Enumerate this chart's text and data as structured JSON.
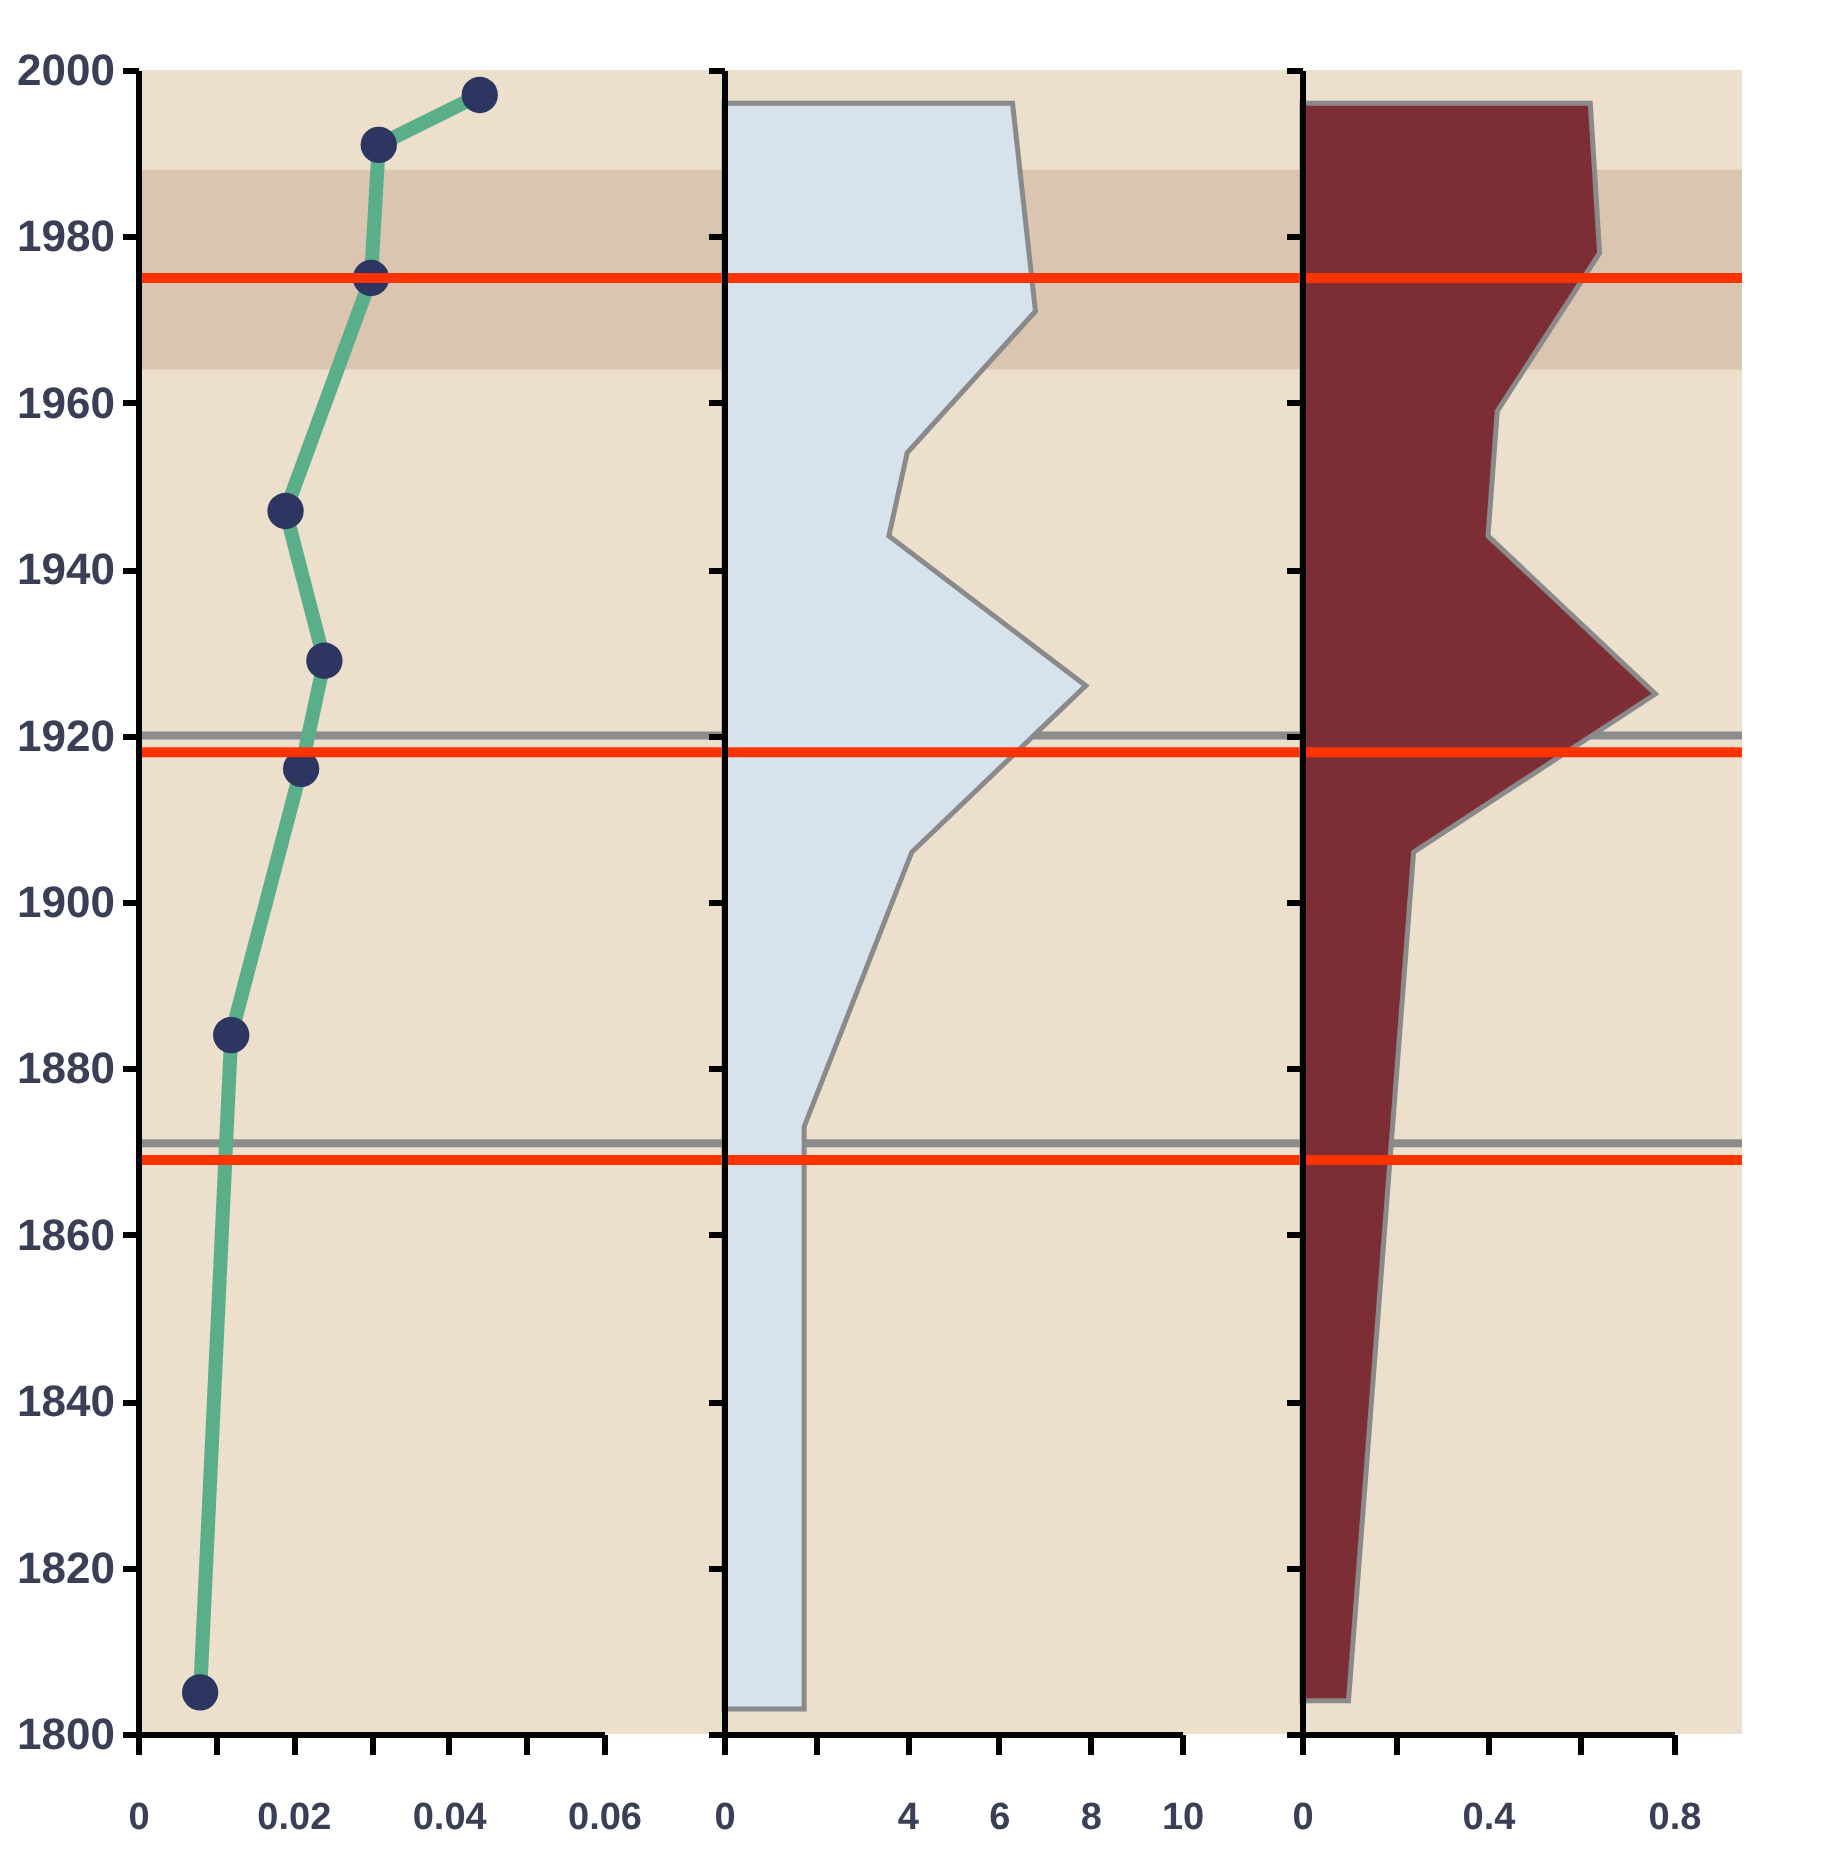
{
  "chart_data": [
    {
      "type": "line",
      "orientation": "horizontal",
      "marker": "circle",
      "grid": false,
      "x": [
        1805,
        1884,
        1916,
        1929,
        1947,
        1975,
        1991,
        1997
      ],
      "values": [
        0.008,
        0.012,
        0.021,
        0.024,
        0.019,
        0.03,
        0.031,
        0.044
      ],
      "color": "#5aae8a",
      "colors": [
        "#2d3561",
        "#2d3561",
        "#2d3561",
        "#2d3561",
        "#2d3561",
        "#2d3561",
        "#2d3561",
        "#2d3561"
      ],
      "xlim": [
        0,
        0.06
      ],
      "xticks": [
        0,
        {
          "value": 0.01,
          "label": null
        },
        0.02,
        {
          "value": 0.03,
          "label": null
        },
        0.04,
        {
          "value": 0.05,
          "label": null
        },
        0.06
      ],
      "ylim": [
        1800,
        2000
      ],
      "yticks": [
        1800,
        1820,
        1840,
        1860,
        1880,
        1900,
        1920,
        1940,
        1960,
        1980,
        2000
      ],
      "bands": [
        {
          "axis": "y",
          "from": 1964,
          "to": 1988,
          "color": "#d9c5b0"
        }
      ],
      "ref_lines": [
        {
          "axis": "y",
          "value": 1920,
          "color": "#8c8c8c"
        },
        {
          "axis": "y",
          "value": 1871,
          "color": "#8c8c8c"
        },
        {
          "axis": "y",
          "value": 1975,
          "color": "#ff3300"
        },
        {
          "axis": "y",
          "value": 1918,
          "color": "#ff3300"
        },
        {
          "axis": "y",
          "value": 1869,
          "color": "#ff3300"
        }
      ]
    },
    {
      "type": "area",
      "orientation": "horizontal",
      "grid": false,
      "tick_labels": "x",
      "x": [
        1803,
        1873,
        1906,
        1926,
        1944,
        1954,
        1971,
        1996
      ],
      "values": [
        1.75,
        1.75,
        4.1,
        7.9,
        3.6,
        4.0,
        6.8,
        6.3
      ],
      "color": "#d6e2ec",
      "xlim": [
        0,
        10
      ],
      "xticks": [
        0,
        {
          "value": 2,
          "label": null
        },
        4,
        6,
        8,
        10
      ],
      "ylim": [
        1800,
        2000
      ],
      "yticks": [
        1800,
        1820,
        1840,
        1860,
        1880,
        1900,
        1920,
        1940,
        1960,
        1980,
        2000
      ],
      "bands": [
        {
          "axis": "y",
          "from": 1964,
          "to": 1988,
          "color": "#d9c5b0"
        }
      ],
      "ref_lines": [
        {
          "axis": "y",
          "value": 1920,
          "color": "#8c8c8c"
        },
        {
          "axis": "y",
          "value": 1871,
          "color": "#8c8c8c"
        },
        {
          "axis": "y",
          "value": 1975,
          "color": "#ff3300"
        },
        {
          "axis": "y",
          "value": 1918,
          "color": "#ff3300"
        },
        {
          "axis": "y",
          "value": 1869,
          "color": "#ff3300"
        }
      ]
    },
    {
      "type": "area",
      "orientation": "horizontal",
      "grid": false,
      "tick_labels": "x",
      "x": [
        1804,
        1906,
        1925,
        1944,
        1959,
        1978,
        1996
      ],
      "values": [
        0.1,
        0.24,
        0.76,
        0.4,
        0.42,
        0.64,
        0.62
      ],
      "color": "#7d2e35",
      "xlim": [
        0,
        0.8
      ],
      "xticks": [
        0,
        {
          "value": 0.2,
          "label": null
        },
        0.4,
        {
          "value": 0.6,
          "label": null
        },
        0.8
      ],
      "ylim": [
        1800,
        2000
      ],
      "yticks": [
        1800,
        1820,
        1840,
        1860,
        1880,
        1900,
        1920,
        1940,
        1960,
        1980,
        2000
      ],
      "bands": [
        {
          "axis": "y",
          "from": 1964,
          "to": 1988,
          "color": "#d9c5b0"
        }
      ],
      "ref_lines": [
        {
          "axis": "y",
          "value": 1920,
          "color": "#8c8c8c"
        },
        {
          "axis": "y",
          "value": 1871,
          "color": "#8c8c8c"
        },
        {
          "axis": "y",
          "value": 1975,
          "color": "#ff3300"
        },
        {
          "axis": "y",
          "value": 1918,
          "color": "#ff3300"
        },
        {
          "axis": "y",
          "value": 1869,
          "color": "#ff3300"
        }
      ]
    }
  ]
}
